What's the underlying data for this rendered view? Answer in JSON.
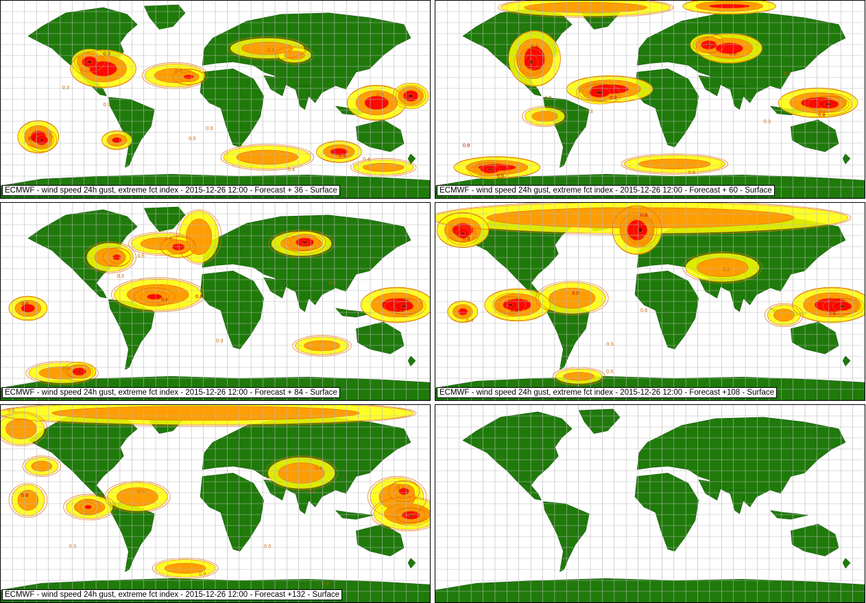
{
  "colors": {
    "land": "#1f7a0a",
    "ocean": "#ffffff",
    "grid": "#b7b7b7",
    "level_low": "#ffff00",
    "level_mid": "#ff9900",
    "level_high": "#ff0000",
    "level_top": "#8b0000",
    "contour_line": "#e07000"
  },
  "panels": [
    {
      "caption": "ECMWF - wind speed 24h gust, extreme fct index - 2015-12-26 12:00 - Forecast + 36 - Surface",
      "forecast_hour": 36,
      "has_field": true
    },
    {
      "caption": "ECMWF - wind speed 24h gust, extreme fct index - 2015-12-26 12:00 - Forecast + 60 - Surface",
      "forecast_hour": 60,
      "has_field": true
    },
    {
      "caption": "ECMWF - wind speed 24h gust, extreme fct index - 2015-12-26 12:00 - Forecast + 84 - Surface",
      "forecast_hour": 84,
      "has_field": true
    },
    {
      "caption": "ECMWF - wind speed 24h gust, extreme fct index - 2015-12-26 12:00 - Forecast +108 - Surface",
      "forecast_hour": 108,
      "has_field": true
    },
    {
      "caption": "ECMWF - wind speed 24h gust, extreme fct index - 2015-12-26 12:00 - Forecast +132 - Surface",
      "forecast_hour": 132,
      "has_field": true
    },
    {
      "caption": "",
      "forecast_hour": null,
      "has_field": false
    }
  ],
  "contour_labels": [
    "0.3",
    "0.4",
    "0.5",
    "0.6",
    "0.7",
    "0.8",
    "0.9"
  ]
}
